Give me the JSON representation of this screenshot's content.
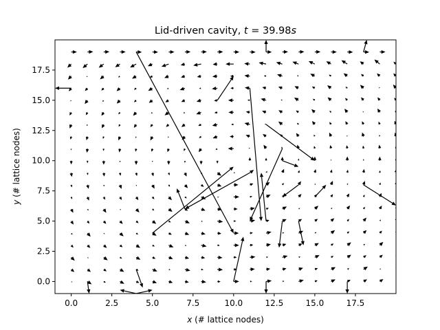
{
  "chart_data": {
    "type": "quiver",
    "title": "Lid-driven cavity, t = 39.98s",
    "title_parts": {
      "main": "Lid-driven cavity, ",
      "var": "t",
      "eq": " = ",
      "value": "39.98",
      "unit": "s"
    },
    "xlabel_parts": {
      "var": "x",
      "rest": " (# lattice nodes)"
    },
    "ylabel_parts": {
      "var": "y",
      "rest": " (# lattice nodes)"
    },
    "xlim": [
      -1,
      20
    ],
    "ylim": [
      -1,
      20
    ],
    "xticks": [
      0.0,
      2.5,
      5.0,
      7.5,
      10.0,
      12.5,
      15.0,
      17.5
    ],
    "xtick_labels": [
      "0.0",
      "2.5",
      "5.0",
      "7.5",
      "10.0",
      "12.5",
      "15.0",
      "17.5"
    ],
    "yticks": [
      0.0,
      2.5,
      5.0,
      7.5,
      10.0,
      12.5,
      15.0,
      17.5
    ],
    "ytick_labels": [
      "0.0",
      "2.5",
      "5.0",
      "7.5",
      "10.0",
      "12.5",
      "15.0",
      "17.5"
    ],
    "grid": false,
    "arrow_color": "#000000",
    "grid_nodes": {
      "x_min": 0,
      "x_max": 20,
      "y_min": 0,
      "y_max": 19,
      "step": 1
    },
    "long_arrows": [
      {
        "x": 4,
        "y": 19,
        "u": 6,
        "v": -15
      },
      {
        "x": 5,
        "y": 4,
        "u": 5,
        "v": 5.5
      },
      {
        "x": 11,
        "y": 9,
        "u": -4,
        "v": -3
      },
      {
        "x": 10,
        "y": 0,
        "u": 0.6,
        "v": 3.7
      },
      {
        "x": 11,
        "y": 16,
        "u": 0.7,
        "v": -11
      },
      {
        "x": 12,
        "y": 13,
        "u": 3,
        "v": -3
      },
      {
        "x": 13,
        "y": 11,
        "u": -2,
        "v": -6
      },
      {
        "x": 12,
        "y": 5,
        "u": -0.3,
        "v": 4
      },
      {
        "x": 9,
        "y": 15,
        "u": 1,
        "v": 2
      },
      {
        "x": 0,
        "y": 16,
        "u": -1,
        "v": 0
      },
      {
        "x": 1,
        "y": 0,
        "u": 0.1,
        "v": -1
      },
      {
        "x": 4,
        "y": -1,
        "u": -1,
        "v": 0.3
      },
      {
        "x": 4,
        "y": -1,
        "u": 1,
        "v": 0.3
      },
      {
        "x": 4,
        "y": 1,
        "u": 0.4,
        "v": -1.5
      },
      {
        "x": 18,
        "y": 8,
        "u": 2,
        "v": -1.7
      },
      {
        "x": 18,
        "y": 19,
        "u": 0.2,
        "v": 1
      },
      {
        "x": 12,
        "y": 19,
        "u": 0,
        "v": 1
      },
      {
        "x": 12,
        "y": 0,
        "u": 0,
        "v": -1
      },
      {
        "x": 17,
        "y": 0,
        "u": 0,
        "v": -1
      },
      {
        "x": 13,
        "y": 10,
        "u": 1,
        "v": -0.5
      },
      {
        "x": 14,
        "y": 8,
        "u": -1,
        "v": -1
      },
      {
        "x": 7,
        "y": 6,
        "u": -0.5,
        "v": 1.7
      },
      {
        "x": 14,
        "y": 5,
        "u": 0.3,
        "v": -2
      },
      {
        "x": 13,
        "y": 5,
        "u": -0.2,
        "v": -2.2
      },
      {
        "x": 15,
        "y": 7,
        "u": 0.7,
        "v": 1
      }
    ]
  }
}
